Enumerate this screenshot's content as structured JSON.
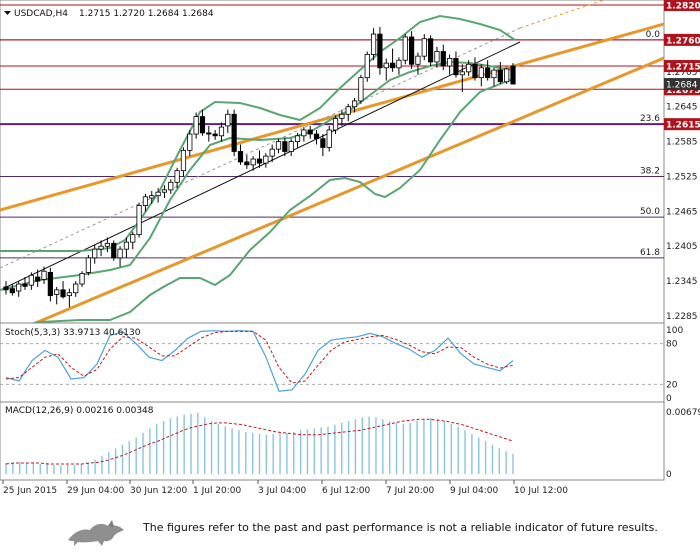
{
  "header": {
    "symbol_label": "USDCAD,H4",
    "ohlc_label": "1.2715 1.2720 1.2684 1.2684"
  },
  "chart_data": {
    "type": "candlestick",
    "price_ticks": [
      "1.2820",
      "1.2760",
      "1.2705",
      "1.2645",
      "1.2585",
      "1.2525",
      "1.2465",
      "1.2405",
      "1.2345",
      "1.2285"
    ],
    "date_ticks": [
      "25 Jun 2015",
      "29 Jun 04:00",
      "30 Jun 12:00",
      "1 Jul 20:00",
      "3 Jul 04:00",
      "6 Jul 12:00",
      "7 Jul 20:00",
      "9 Jul 04:00",
      "10 Jul 12:00"
    ],
    "price_range": [
      1.2285,
      1.282
    ],
    "fib_levels": [
      {
        "label": "0.0",
        "price": 1.276
      },
      {
        "label": "23.6",
        "price": 1.2615
      },
      {
        "label": "38.2",
        "price": 1.2525
      },
      {
        "label": "50.0",
        "price": 1.2455
      },
      {
        "label": "61.8",
        "price": 1.2385
      }
    ],
    "highlighted_prices": [
      {
        "label": "1.2820",
        "price": 1.282
      },
      {
        "label": "1.2760",
        "price": 1.276
      },
      {
        "label": "1.2715",
        "price": 1.2715
      },
      {
        "label": "1.2675",
        "price": 1.2675
      },
      {
        "label": "1.2615",
        "price": 1.2615
      }
    ],
    "current_price_label": "1.2684",
    "stochastic": {
      "label": "Stoch(5,3,3) 33.9713 40.6130",
      "levels": [
        "100",
        "80",
        "20",
        "0"
      ]
    },
    "macd": {
      "label": "MACD(12,26,9) 0.00216 0.00348",
      "levels": [
        "0.00679",
        "0"
      ]
    },
    "colors": {
      "bull": "#ffffff",
      "bear": "#000000",
      "bands": "#5aa673",
      "channel": "#e8972b",
      "fib": "#4b2a6e",
      "resistance": "#b0131b"
    }
  },
  "footer": {
    "disclaimer": "The figures refer to the past and past performance is not a reliable indicator of future results."
  }
}
